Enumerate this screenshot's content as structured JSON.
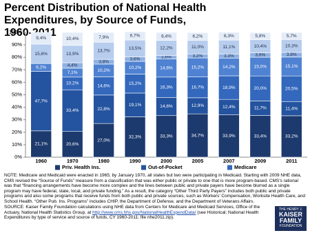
{
  "chart_data": {
    "type": "stacked-bar",
    "title": "Percent Distribution of National Health Expenditures, by Source of Funds, 1960-2011",
    "categories": [
      "1960",
      "1970",
      "1980",
      "1990",
      "2000",
      "2005",
      "2007",
      "2009",
      "2011"
    ],
    "series": [
      {
        "name": "Priv. Health Ins.",
        "color": "#1d3a6e",
        "values": [
          21.1,
          20.6,
          27.0,
          32.3,
          33.3,
          34.7,
          33.9,
          33.4,
          33.2
        ],
        "value_labels": [
          "21,1%",
          "20,6%",
          "27,0%",
          "32,3%",
          "33,3%",
          "34,7%",
          "33,9%",
          "33,4%",
          "33,2%"
        ]
      },
      {
        "name": "Out-of-Pocket",
        "color": "#24539f",
        "values": [
          47.7,
          33.4,
          22.8,
          19.1,
          14.6,
          12.9,
          12.4,
          11.7,
          11.4
        ],
        "value_labels": [
          "47,7%",
          "33,4%",
          "22,8%",
          "19,1%",
          "14,6%",
          "12,9%",
          "12,4%",
          "11,7%",
          "11,4%"
        ]
      },
      {
        "name": "Medicare",
        "color": "#3368bd",
        "values": [
          null,
          10.2,
          14.6,
          15.2,
          16.3,
          16.7,
          18.9,
          20.0,
          20.5
        ],
        "value_labels": [
          null,
          "10,2%",
          "14,6%",
          "15,2%",
          "16,3%",
          "16,7%",
          "18,9%",
          "20,0%",
          "20,5%"
        ]
      },
      {
        "color": "#4f82d2",
        "values": [
          6.2,
          7.1,
          10.2,
          10.2,
          14.6,
          15.2,
          14.2,
          15.0,
          15.1
        ],
        "value_labels": [
          "6,2%",
          "7,1%",
          "10,2%",
          "10,2%",
          "14,6%",
          "15,2%",
          "14,2%",
          "15,0%",
          "15,1%"
        ]
      },
      {
        "color": "#8fb1e3",
        "values": [
          null,
          4.4,
          3.8,
          3.6,
          2.6,
          3.2,
          3.3,
          3.6,
          3.8
        ],
        "value_labels": [
          null,
          "4,4%",
          "3,8%",
          "3,6%",
          "2,6%",
          "3,2%",
          "3,3%",
          "3,6%",
          "3,8%"
        ]
      },
      {
        "color": "#b7cdee",
        "values": [
          15.6,
          13.9,
          13.7,
          13.5,
          12.2,
          11.0,
          11.1,
          10.4,
          10.3
        ],
        "value_labels": [
          "15,6%",
          "13,9%",
          "13,7%",
          "13,5%",
          "12,2%",
          "11,0%",
          "11,1%",
          "10,4%",
          "10,3%"
        ]
      },
      {
        "color": "#e4ecf8",
        "values": [
          9.4,
          10.4,
          7.9,
          6.7,
          6.4,
          6.2,
          6.3,
          5.8,
          5.7
        ],
        "value_labels": [
          "9,4%",
          "10,4%",
          "7,9%",
          "6,7%",
          "6,4%",
          "6,2%",
          "6,3%",
          "5,8%",
          "5,7%"
        ]
      }
    ],
    "ylim": [
      0,
      100
    ],
    "yticks": [
      {
        "value": 0,
        "label": "0%"
      },
      {
        "value": 10,
        "label": "10%"
      },
      {
        "value": 20,
        "label": "20%"
      },
      {
        "value": 30,
        "label": "30%"
      },
      {
        "value": 40,
        "label": "40%"
      },
      {
        "value": 50,
        "label": "50%"
      },
      {
        "value": 60,
        "label": "60%"
      },
      {
        "value": 70,
        "label": "70%"
      },
      {
        "value": 80,
        "label": "80%"
      },
      {
        "value": 90,
        "label": "90%"
      },
      {
        "value": 100,
        "label": "100%"
      }
    ],
    "grid": false
  },
  "notes": "NOTE: Medicare and Medicaid were enacted in 1965; by January 1970, all states but two were participating in Medicaid. Starting with 2009 NHE data, CMS revised the “Source of Funds” measure from a classification that was either public or private to one that is more program-based. CMS’s rational was that “financing arrangements have become more complex and the lines between public and private payers have become blurred as a single program may have federal, state, local, and private funding.”  As a result, the category “Other Third Party Payers” includes both public and private programs and also some programs that receive funds from both public and private sources, such as Workers’ Compensation, Worksite Health Care, and School Health.  “Other Pub. Ins. Programs” includes CHIP, the Department of Defense, and the Department of Veterans Affairs.",
  "source": {
    "before": "SOURCE: Kaiser Family Foundation calculations using NHE data from Centers for Medicare and Medicaid Services, Office of the Actuary, National Health Statistics Group, at ",
    "link": "http://www.cms.hhs.gov/NationalHealthExpendData/",
    "after": " (see Historical; National Health Expenditures by type of service and source of funds, CY 1960-2011; file nhe2011.zip)."
  },
  "logo": {
    "top": "THE HENRY J.",
    "name": "KAISER FAMILY",
    "bottom": "FOUNDATION"
  }
}
